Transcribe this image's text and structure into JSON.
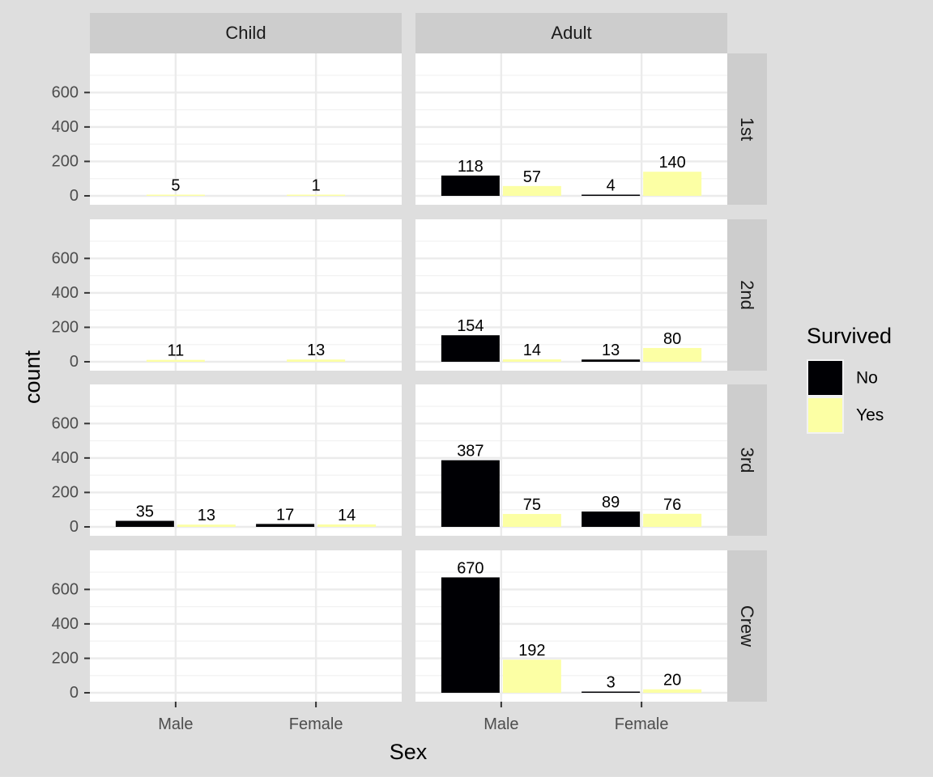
{
  "chart_data": {
    "type": "bar",
    "facet_columns": [
      "Child",
      "Adult"
    ],
    "facet_rows": [
      "1st",
      "2nd",
      "3rd",
      "Crew"
    ],
    "categories": [
      "Male",
      "Female"
    ],
    "xlabel": "Sex",
    "ylabel": "count",
    "ylim": [
      0,
      780
    ],
    "y_ticks": [
      0,
      200,
      400,
      600
    ],
    "legend": {
      "title": "Survived",
      "position": "right",
      "entries": [
        "No",
        "Yes"
      ]
    },
    "series_colors": {
      "No": "#000004",
      "Yes": "#FCFFA4"
    },
    "grid": true,
    "panels": [
      {
        "row": "1st",
        "column": "Child",
        "bars": [
          {
            "sex": "Male",
            "survived": "Yes",
            "value": 5
          },
          {
            "sex": "Female",
            "survived": "Yes",
            "value": 1
          }
        ]
      },
      {
        "row": "1st",
        "column": "Adult",
        "bars": [
          {
            "sex": "Male",
            "survived": "No",
            "value": 118
          },
          {
            "sex": "Male",
            "survived": "Yes",
            "value": 57
          },
          {
            "sex": "Female",
            "survived": "No",
            "value": 4
          },
          {
            "sex": "Female",
            "survived": "Yes",
            "value": 140
          }
        ]
      },
      {
        "row": "2nd",
        "column": "Child",
        "bars": [
          {
            "sex": "Male",
            "survived": "Yes",
            "value": 11
          },
          {
            "sex": "Female",
            "survived": "Yes",
            "value": 13
          }
        ]
      },
      {
        "row": "2nd",
        "column": "Adult",
        "bars": [
          {
            "sex": "Male",
            "survived": "No",
            "value": 154
          },
          {
            "sex": "Male",
            "survived": "Yes",
            "value": 14
          },
          {
            "sex": "Female",
            "survived": "No",
            "value": 13
          },
          {
            "sex": "Female",
            "survived": "Yes",
            "value": 80
          }
        ]
      },
      {
        "row": "3rd",
        "column": "Child",
        "bars": [
          {
            "sex": "Male",
            "survived": "No",
            "value": 35
          },
          {
            "sex": "Male",
            "survived": "Yes",
            "value": 13
          },
          {
            "sex": "Female",
            "survived": "No",
            "value": 17
          },
          {
            "sex": "Female",
            "survived": "Yes",
            "value": 14
          }
        ]
      },
      {
        "row": "3rd",
        "column": "Adult",
        "bars": [
          {
            "sex": "Male",
            "survived": "No",
            "value": 387
          },
          {
            "sex": "Male",
            "survived": "Yes",
            "value": 75
          },
          {
            "sex": "Female",
            "survived": "No",
            "value": 89
          },
          {
            "sex": "Female",
            "survived": "Yes",
            "value": 76
          }
        ]
      },
      {
        "row": "Crew",
        "column": "Child",
        "bars": []
      },
      {
        "row": "Crew",
        "column": "Adult",
        "bars": [
          {
            "sex": "Male",
            "survived": "No",
            "value": 670
          },
          {
            "sex": "Male",
            "survived": "Yes",
            "value": 192
          },
          {
            "sex": "Female",
            "survived": "No",
            "value": 3
          },
          {
            "sex": "Female",
            "survived": "Yes",
            "value": 20
          }
        ]
      }
    ]
  }
}
